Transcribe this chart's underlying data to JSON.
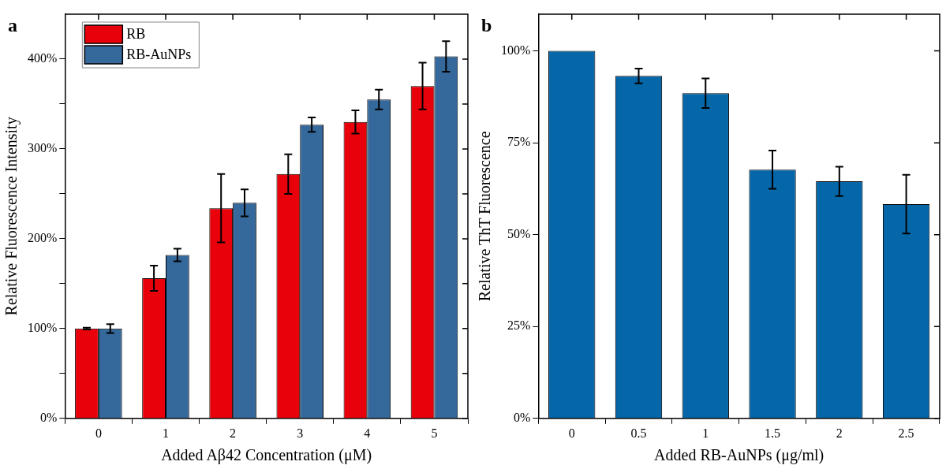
{
  "chart_data": [
    {
      "type": "bar",
      "annotations": [
        "a"
      ],
      "xlabel": "Added Aβ42 Concentration (μM)",
      "ylabel": "Relative Fluorescence Intensity",
      "categories": [
        "0",
        "1",
        "2",
        "3",
        "4",
        "5"
      ],
      "series": [
        {
          "name": "RB",
          "color": "#e8000b",
          "values": [
            100,
            156,
            234,
            272,
            330,
            370
          ],
          "errors": [
            1,
            14,
            38,
            22,
            13,
            26
          ]
        },
        {
          "name": "RB-AuNPs",
          "color": "#35689b",
          "values": [
            100,
            182,
            240,
            327,
            355,
            403
          ],
          "errors": [
            5,
            7,
            15,
            8,
            11,
            17
          ]
        }
      ],
      "ylim": [
        0,
        450
      ],
      "yticks": [
        {
          "value": 0,
          "label": "0%"
        },
        {
          "value": 50,
          "label": null
        },
        {
          "value": 100,
          "label": "100%"
        },
        {
          "value": 150,
          "label": null
        },
        {
          "value": 200,
          "label": "200%"
        },
        {
          "value": 250,
          "label": null
        },
        {
          "value": 300,
          "label": "300%"
        },
        {
          "value": 350,
          "label": null
        },
        {
          "value": 400,
          "label": "400%"
        }
      ],
      "grid": false,
      "legend": "top left"
    },
    {
      "type": "bar",
      "annotations": [
        "b"
      ],
      "xlabel": "Added RB-AuNPs (μg/ml)",
      "ylabel": "Relative ThT Fluorescence",
      "categories": [
        "0",
        "0.5",
        "1",
        "1.5",
        "2",
        "2.5"
      ],
      "series": [
        {
          "color": "#0566a8",
          "values": [
            100,
            93.2,
            88.5,
            67.7,
            64.5,
            58.3
          ],
          "errors": [
            null,
            2,
            4,
            5.2,
            4,
            8
          ]
        }
      ],
      "ylim": [
        0,
        110
      ],
      "yticks": [
        {
          "value": 0,
          "label": "0%"
        },
        {
          "value": 25,
          "label": "25%"
        },
        {
          "value": 50,
          "label": "50%"
        },
        {
          "value": 75,
          "label": "75%"
        },
        {
          "value": 100,
          "label": "100%"
        }
      ],
      "grid": false,
      "legend": false
    }
  ]
}
